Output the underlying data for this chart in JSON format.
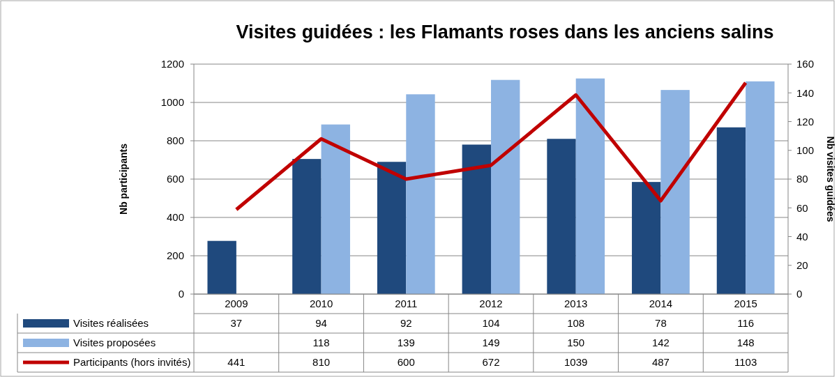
{
  "chart_data": {
    "type": "bar",
    "title": "Visites guidées : les Flamants roses dans les anciens salins",
    "ylabel": "Nb participants",
    "y2label": "Nb visites guidées",
    "categories": [
      "2009",
      "2010",
      "2011",
      "2012",
      "2013",
      "2014",
      "2015"
    ],
    "series": [
      {
        "name": "Visites réalisées",
        "axis": "y2",
        "color": "#1f497d",
        "values": [
          37,
          94,
          92,
          104,
          108,
          78,
          116
        ]
      },
      {
        "name": "Visites proposées",
        "axis": "y2",
        "color": "#8db3e2",
        "values": [
          null,
          118,
          139,
          149,
          150,
          142,
          148
        ]
      },
      {
        "name": "Participants (hors invités)",
        "type": "line",
        "axis": "y",
        "color": "#c00000",
        "values": [
          441,
          810,
          600,
          672,
          1039,
          487,
          1103
        ]
      }
    ],
    "ylim": [
      0,
      1200
    ],
    "yticks": [
      0,
      200,
      400,
      600,
      800,
      1000,
      1200
    ],
    "y2lim": [
      0,
      160
    ],
    "y2ticks": [
      0,
      20,
      40,
      60,
      80,
      100,
      120,
      140,
      160
    ],
    "grid": "y",
    "legend": "bottom",
    "data_labels": true,
    "marker": "none",
    "line_style": "solid"
  }
}
